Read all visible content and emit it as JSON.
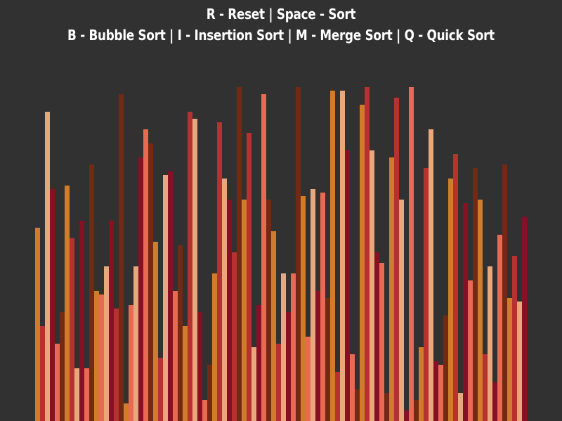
{
  "controls": {
    "line1": "R - Reset | Space - Sort",
    "line2": "B - Bubble Sort | I - Insertion Sort | M - Merge Sort | Q - Quick Sort"
  },
  "colors": {
    "background": "#313131",
    "text": "#ffffff",
    "bar_palette": [
      "#d07c2a",
      "#e8a87c",
      "#e86a52",
      "#b73131",
      "#861024",
      "#722a14"
    ]
  },
  "bars": [
    {
      "value": 275,
      "color": "#d07c2a"
    },
    {
      "value": 135,
      "color": "#b73131"
    },
    {
      "value": 440,
      "color": "#e8a87c"
    },
    {
      "value": 330,
      "color": "#861024"
    },
    {
      "value": 110,
      "color": "#e86a52"
    },
    {
      "value": 155,
      "color": "#722a14"
    },
    {
      "value": 335,
      "color": "#d07c2a"
    },
    {
      "value": 260,
      "color": "#b73131"
    },
    {
      "value": 75,
      "color": "#e8a87c"
    },
    {
      "value": 285,
      "color": "#861024"
    },
    {
      "value": 75,
      "color": "#e86a52"
    },
    {
      "value": 365,
      "color": "#722a14"
    },
    {
      "value": 185,
      "color": "#d07c2a"
    },
    {
      "value": 180,
      "color": "#e86a52"
    },
    {
      "value": 220,
      "color": "#e8a87c"
    },
    {
      "value": 285,
      "color": "#861024"
    },
    {
      "value": 160,
      "color": "#b73131"
    },
    {
      "value": 465,
      "color": "#722a14"
    },
    {
      "value": 25,
      "color": "#d07c2a"
    },
    {
      "value": 165,
      "color": "#e86a52"
    },
    {
      "value": 220,
      "color": "#e8a87c"
    },
    {
      "value": 375,
      "color": "#861024"
    },
    {
      "value": 415,
      "color": "#e86a52"
    },
    {
      "value": 395,
      "color": "#722a14"
    },
    {
      "value": 255,
      "color": "#d07c2a"
    },
    {
      "value": 90,
      "color": "#b73131"
    },
    {
      "value": 350,
      "color": "#e8a87c"
    },
    {
      "value": 355,
      "color": "#861024"
    },
    {
      "value": 185,
      "color": "#e86a52"
    },
    {
      "value": 250,
      "color": "#722a14"
    },
    {
      "value": 135,
      "color": "#d07c2a"
    },
    {
      "value": 440,
      "color": "#b73131"
    },
    {
      "value": 430,
      "color": "#e8a87c"
    },
    {
      "value": 155,
      "color": "#861024"
    },
    {
      "value": 30,
      "color": "#e86a52"
    },
    {
      "value": 80,
      "color": "#722a14"
    },
    {
      "value": 210,
      "color": "#d07c2a"
    },
    {
      "value": 425,
      "color": "#b73131"
    },
    {
      "value": 345,
      "color": "#e8a87c"
    },
    {
      "value": 315,
      "color": "#861024"
    },
    {
      "value": 240,
      "color": "#b73131"
    },
    {
      "value": 475,
      "color": "#722a14"
    },
    {
      "value": 315,
      "color": "#d07c2a"
    },
    {
      "value": 410,
      "color": "#b73131"
    },
    {
      "value": 105,
      "color": "#e8a87c"
    },
    {
      "value": 165,
      "color": "#861024"
    },
    {
      "value": 465,
      "color": "#e86a52"
    },
    {
      "value": 315,
      "color": "#722a14"
    },
    {
      "value": 270,
      "color": "#d07c2a"
    },
    {
      "value": 110,
      "color": "#b73131"
    },
    {
      "value": 210,
      "color": "#e8a87c"
    },
    {
      "value": 155,
      "color": "#861024"
    },
    {
      "value": 210,
      "color": "#e86a52"
    },
    {
      "value": 475,
      "color": "#722a14"
    },
    {
      "value": 320,
      "color": "#d07c2a"
    },
    {
      "value": 120,
      "color": "#e86a52"
    },
    {
      "value": 330,
      "color": "#e8a87c"
    },
    {
      "value": 185,
      "color": "#861024"
    },
    {
      "value": 325,
      "color": "#e86a52"
    },
    {
      "value": 175,
      "color": "#722a14"
    },
    {
      "value": 470,
      "color": "#d07c2a"
    },
    {
      "value": 70,
      "color": "#b73131"
    },
    {
      "value": 470,
      "color": "#e8a87c"
    },
    {
      "value": 385,
      "color": "#861024"
    },
    {
      "value": 95,
      "color": "#e86a52"
    },
    {
      "value": 45,
      "color": "#722a14"
    },
    {
      "value": 450,
      "color": "#d07c2a"
    },
    {
      "value": 475,
      "color": "#b73131"
    },
    {
      "value": 385,
      "color": "#e8a87c"
    },
    {
      "value": 240,
      "color": "#861024"
    },
    {
      "value": 225,
      "color": "#e86a52"
    },
    {
      "value": 40,
      "color": "#722a14"
    },
    {
      "value": 375,
      "color": "#d07c2a"
    },
    {
      "value": 460,
      "color": "#b73131"
    },
    {
      "value": 315,
      "color": "#e8a87c"
    },
    {
      "value": 15,
      "color": "#861024"
    },
    {
      "value": 475,
      "color": "#e86a52"
    },
    {
      "value": 30,
      "color": "#722a14"
    },
    {
      "value": 105,
      "color": "#d07c2a"
    },
    {
      "value": 360,
      "color": "#b73131"
    },
    {
      "value": 415,
      "color": "#e8a87c"
    },
    {
      "value": 85,
      "color": "#861024"
    },
    {
      "value": 80,
      "color": "#e86a52"
    },
    {
      "value": 150,
      "color": "#722a14"
    },
    {
      "value": 345,
      "color": "#d07c2a"
    },
    {
      "value": 380,
      "color": "#b73131"
    },
    {
      "value": 40,
      "color": "#e8a87c"
    },
    {
      "value": 310,
      "color": "#861024"
    },
    {
      "value": 200,
      "color": "#e86a52"
    },
    {
      "value": 360,
      "color": "#722a14"
    },
    {
      "value": 315,
      "color": "#d07c2a"
    },
    {
      "value": 95,
      "color": "#b73131"
    },
    {
      "value": 220,
      "color": "#e8a87c"
    },
    {
      "value": 55,
      "color": "#861024"
    },
    {
      "value": 265,
      "color": "#e86a52"
    },
    {
      "value": 365,
      "color": "#722a14"
    },
    {
      "value": 175,
      "color": "#d07c2a"
    },
    {
      "value": 235,
      "color": "#b73131"
    },
    {
      "value": 170,
      "color": "#e8a87c"
    },
    {
      "value": 290,
      "color": "#861024"
    }
  ]
}
